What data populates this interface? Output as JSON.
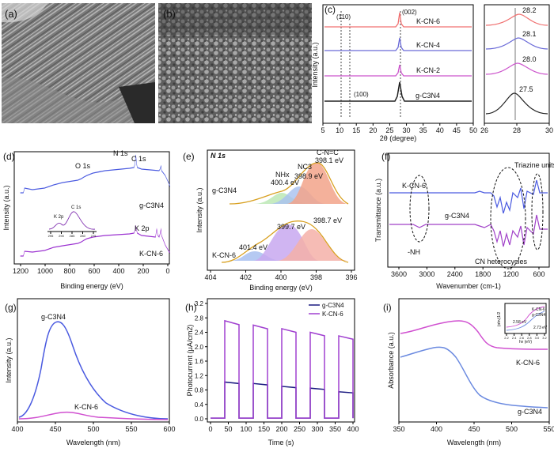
{
  "figure": {
    "panel_a": {
      "label": "(a)"
    },
    "panel_b": {
      "label": "(b)"
    },
    "panel_c": {
      "label": "(c)",
      "peak_110": "(110)",
      "peak_002": "(002)",
      "peak_100": "(100)",
      "chart_data": {
        "type": "line",
        "title": "",
        "xlabel": "2θ (degree)",
        "ylabel": "Intensity (a.u.)",
        "xlim": [
          5,
          50
        ],
        "x_ticks": [
          "5",
          "10",
          "15",
          "20",
          "25",
          "30",
          "35",
          "40",
          "45",
          "50"
        ],
        "series": [
          {
            "name": "K-CN-6",
            "color": "#f07070",
            "peak_at": 28.2
          },
          {
            "name": "K-CN-4",
            "color": "#6b6bd8",
            "peak_at": 28.1
          },
          {
            "name": "K-CN-2",
            "color": "#cc55cc",
            "peak_at": 28.0
          },
          {
            "name": "g-C3N4",
            "color": "#222222",
            "peak_at": 27.5
          }
        ],
        "zoom": {
          "xlim": [
            26,
            30
          ],
          "x_ticks": [
            "26",
            "28",
            "30"
          ],
          "peak_labels": [
            "28.2",
            "28.1",
            "28.0",
            "27.5"
          ]
        }
      }
    },
    "panel_d": {
      "label": "(d)",
      "chart_data": {
        "type": "line",
        "xlabel": "Binding energy (eV)",
        "ylabel": "Intensity (a.u.)",
        "xlim": [
          1200,
          0
        ],
        "x_ticks": [
          "1200",
          "1000",
          "800",
          "600",
          "400",
          "200",
          "0"
        ],
        "series": [
          {
            "name": "g-C3N4",
            "color": "#4a5ae0"
          },
          {
            "name": "K-CN-6",
            "color": "#9a30d0"
          }
        ],
        "peaks": [
          "N 1s",
          "O 1s",
          "C 1s",
          "K 2p"
        ],
        "inset": {
          "title": "C 1s",
          "label": "K 2p",
          "x_ticks": [
            "295",
            "290",
            "285",
            "280",
            "275"
          ]
        }
      }
    },
    "panel_e": {
      "label": "(e)",
      "title": "N 1s",
      "chart_data": {
        "type": "line",
        "xlabel": "Binding energy (eV)",
        "ylabel": "Intensity (a.u.)",
        "xlim": [
          404,
          396
        ],
        "x_ticks": [
          "404",
          "402",
          "400",
          "398",
          "396"
        ],
        "series": [
          {
            "name": "g-C3N4",
            "components": [
              {
                "name": "NHx",
                "energy": "400.4 eV"
              },
              {
                "name": "NC3",
                "energy": "398.9 eV"
              },
              {
                "name": "C-N=C",
                "energy": "398.1 eV"
              }
            ]
          },
          {
            "name": "K-CN-6",
            "components": [
              {
                "energy": "401.4 eV"
              },
              {
                "energy": "399.7 eV"
              },
              {
                "energy": "398.7 eV"
              }
            ]
          }
        ]
      }
    },
    "panel_f": {
      "label": "(f)",
      "chart_data": {
        "type": "line",
        "xlabel": "Wavenumber (cm-1)",
        "ylabel": "Transmittance (a.u.)",
        "xlim": [
          3800,
          600
        ],
        "x_ticks": [
          "3600",
          "3000",
          "2400",
          "1800",
          "1200",
          "600"
        ],
        "series": [
          {
            "name": "K-CN-6",
            "color": "#4a5ae0"
          },
          {
            "name": "g-C3N4",
            "color": "#a040c8"
          }
        ],
        "annotations": [
          "Triazine units",
          "-NH",
          "CN heterocycles"
        ]
      }
    },
    "panel_g": {
      "label": "(g)",
      "chart_data": {
        "type": "line",
        "xlabel": "Wavelength (nm)",
        "ylabel": "Intensity (a.u.)",
        "xlim": [
          400,
          600
        ],
        "x_ticks": [
          "400",
          "450",
          "500",
          "550",
          "600"
        ],
        "series": [
          {
            "name": "g-C3N4",
            "color": "#4a5ae0",
            "peak_at": 450
          },
          {
            "name": "K-CN-6",
            "color": "#d050d0",
            "peak_at": 470
          }
        ]
      }
    },
    "panel_h": {
      "label": "(h)",
      "chart_data": {
        "type": "line",
        "xlabel": "Time (s)",
        "ylabel": "Photocurrent (μA/cm2)",
        "xlim": [
          0,
          400
        ],
        "ylim": [
          0,
          3.2
        ],
        "x_ticks": [
          "0",
          "50",
          "100",
          "150",
          "200",
          "250",
          "300",
          "350",
          "400"
        ],
        "y_ticks": [
          "0.0",
          "0.4",
          "0.8",
          "1.2",
          "1.6",
          "2.0",
          "2.4",
          "2.8",
          "3.2"
        ],
        "on_intervals": [
          [
            40,
            80
          ],
          [
            120,
            160
          ],
          [
            200,
            240
          ],
          [
            280,
            320
          ],
          [
            360,
            400
          ]
        ],
        "series": [
          {
            "name": "g-C3N4",
            "color": "#1a1a80",
            "on_values": [
              1.02,
              0.98,
              0.9,
              0.85,
              0.75
            ],
            "off_value": 0.02
          },
          {
            "name": "K-CN-6",
            "color": "#a040d0",
            "on_values": [
              2.72,
              2.6,
              2.5,
              2.4,
              2.3
            ],
            "off_value": 0.02
          }
        ],
        "legend": "top-right"
      }
    },
    "panel_i": {
      "label": "(i)",
      "chart_data": {
        "type": "line",
        "xlabel": "Wavelength (nm)",
        "ylabel": "Absorbance (a.u.)",
        "xlim": [
          350,
          550
        ],
        "x_ticks": [
          "350",
          "400",
          "450",
          "500",
          "550"
        ],
        "series": [
          {
            "name": "K-CN-6",
            "color": "#d050d0"
          },
          {
            "name": "g-C3N4",
            "color": "#6b8ae0"
          }
        ],
        "inset": {
          "ylabel": "(αhν)1/2",
          "xlabel": "hν (eV)",
          "x_ticks": [
            "2.2",
            "2.4",
            "2.6",
            "2.8",
            "3.0",
            "3.2"
          ],
          "series_labels": [
            "K-CN-6",
            "g-C3N4"
          ],
          "band_gaps": [
            "2.58 eV",
            "2.73 eV"
          ]
        }
      }
    }
  }
}
